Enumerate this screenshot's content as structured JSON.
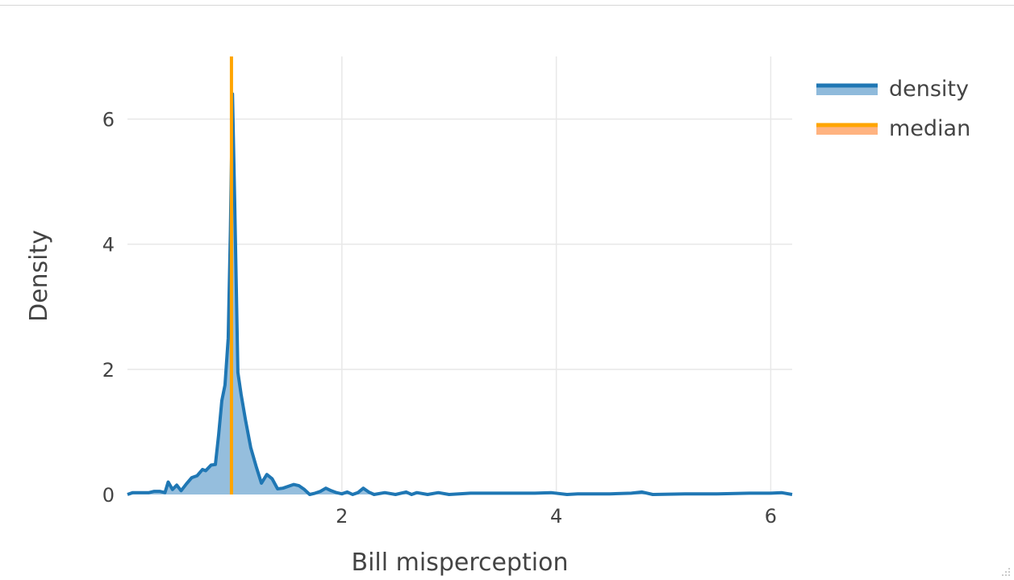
{
  "chart_data": {
    "type": "area",
    "xlabel": "Bill misperception",
    "ylabel": "Density",
    "xlim": [
      0,
      6.2
    ],
    "ylim": [
      0,
      7
    ],
    "x_ticks": [
      2,
      4,
      6
    ],
    "y_ticks": [
      0,
      2,
      4,
      6
    ],
    "grid": true,
    "legend_position": "top-right",
    "series": [
      {
        "name": "density",
        "color": "#1f77b4",
        "fill_color": "#8fbadb",
        "x": [
          0.0,
          0.05,
          0.2,
          0.25,
          0.3,
          0.35,
          0.38,
          0.42,
          0.46,
          0.5,
          0.55,
          0.6,
          0.65,
          0.7,
          0.73,
          0.78,
          0.82,
          0.85,
          0.88,
          0.91,
          0.94,
          0.96,
          0.98,
          1.0,
          1.03,
          1.06,
          1.1,
          1.15,
          1.2,
          1.25,
          1.3,
          1.35,
          1.4,
          1.45,
          1.5,
          1.55,
          1.6,
          1.65,
          1.7,
          1.75,
          1.8,
          1.85,
          1.9,
          1.95,
          2.0,
          2.05,
          2.1,
          2.15,
          2.2,
          2.25,
          2.3,
          2.4,
          2.5,
          2.6,
          2.65,
          2.7,
          2.8,
          2.9,
          3.0,
          3.2,
          3.5,
          3.8,
          3.95,
          4.1,
          4.2,
          4.5,
          4.7,
          4.8,
          4.9,
          5.2,
          5.5,
          5.8,
          6.0,
          6.1,
          6.2
        ],
        "y": [
          0.0,
          0.03,
          0.03,
          0.05,
          0.05,
          0.03,
          0.2,
          0.08,
          0.15,
          0.06,
          0.17,
          0.27,
          0.3,
          0.4,
          0.38,
          0.47,
          0.48,
          0.95,
          1.5,
          1.75,
          2.5,
          4.2,
          6.4,
          4.7,
          1.95,
          1.6,
          1.2,
          0.75,
          0.45,
          0.18,
          0.32,
          0.25,
          0.09,
          0.1,
          0.13,
          0.16,
          0.14,
          0.08,
          0.0,
          0.02,
          0.05,
          0.1,
          0.06,
          0.03,
          0.01,
          0.04,
          0.0,
          0.03,
          0.1,
          0.04,
          0.0,
          0.03,
          0.0,
          0.04,
          0.0,
          0.03,
          0.0,
          0.03,
          0.0,
          0.02,
          0.02,
          0.02,
          0.03,
          0.0,
          0.01,
          0.01,
          0.02,
          0.04,
          0.0,
          0.01,
          0.01,
          0.02,
          0.02,
          0.03,
          0.0
        ]
      },
      {
        "name": "median",
        "color": "#ffa500",
        "legend_fill": "#ffb380",
        "x": [
          0.97,
          0.97
        ],
        "y": [
          0,
          7
        ]
      }
    ]
  }
}
